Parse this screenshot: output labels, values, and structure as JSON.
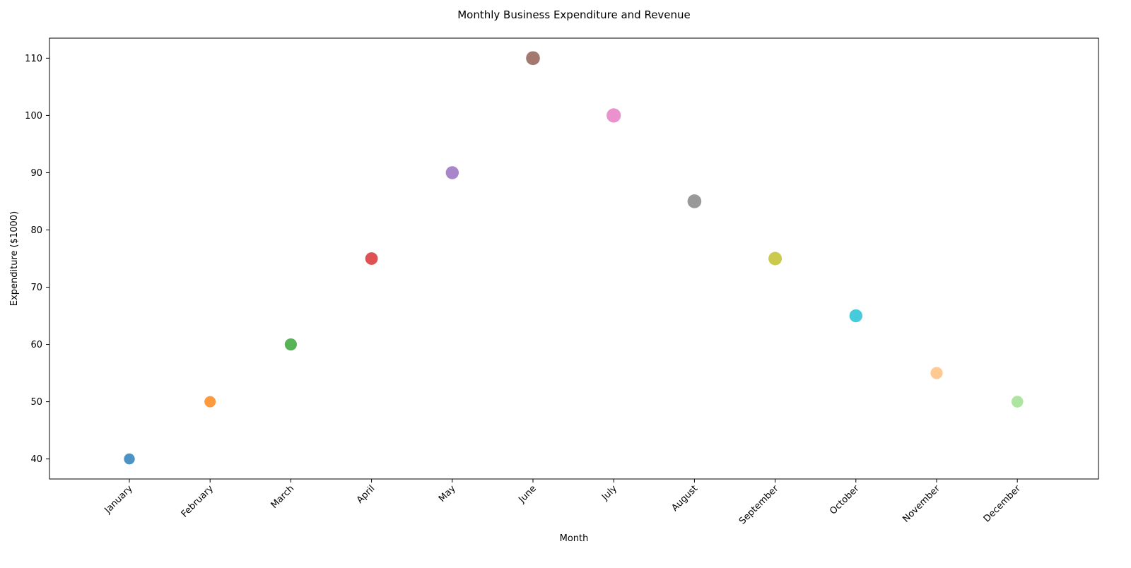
{
  "chart_data": {
    "type": "scatter",
    "title": "Monthly Business Expenditure and Revenue",
    "xlabel": "Month",
    "ylabel": "Expenditure ($1000)",
    "categories": [
      "January",
      "February",
      "March",
      "April",
      "May",
      "June",
      "July",
      "August",
      "September",
      "October",
      "November",
      "December"
    ],
    "values": [
      40,
      50,
      60,
      75,
      90,
      110,
      100,
      85,
      75,
      65,
      55,
      50
    ],
    "point_colors": [
      "#1f77b4",
      "#ff7f0e",
      "#2ca02c",
      "#d62728",
      "#9467bd",
      "#8c564b",
      "#e377c2",
      "#7f7f7f",
      "#bcbd22",
      "#17becf",
      "#ffbb78",
      "#98df8a"
    ],
    "relative_marker_size": [
      0.45,
      0.5,
      0.6,
      0.65,
      0.7,
      0.8,
      0.85,
      0.8,
      0.75,
      0.7,
      0.6,
      0.55
    ],
    "ylim": [
      36.5,
      113.5
    ],
    "yticks": [
      40,
      50,
      60,
      70,
      80,
      90,
      100,
      110
    ],
    "grid": false,
    "legend": "none"
  }
}
